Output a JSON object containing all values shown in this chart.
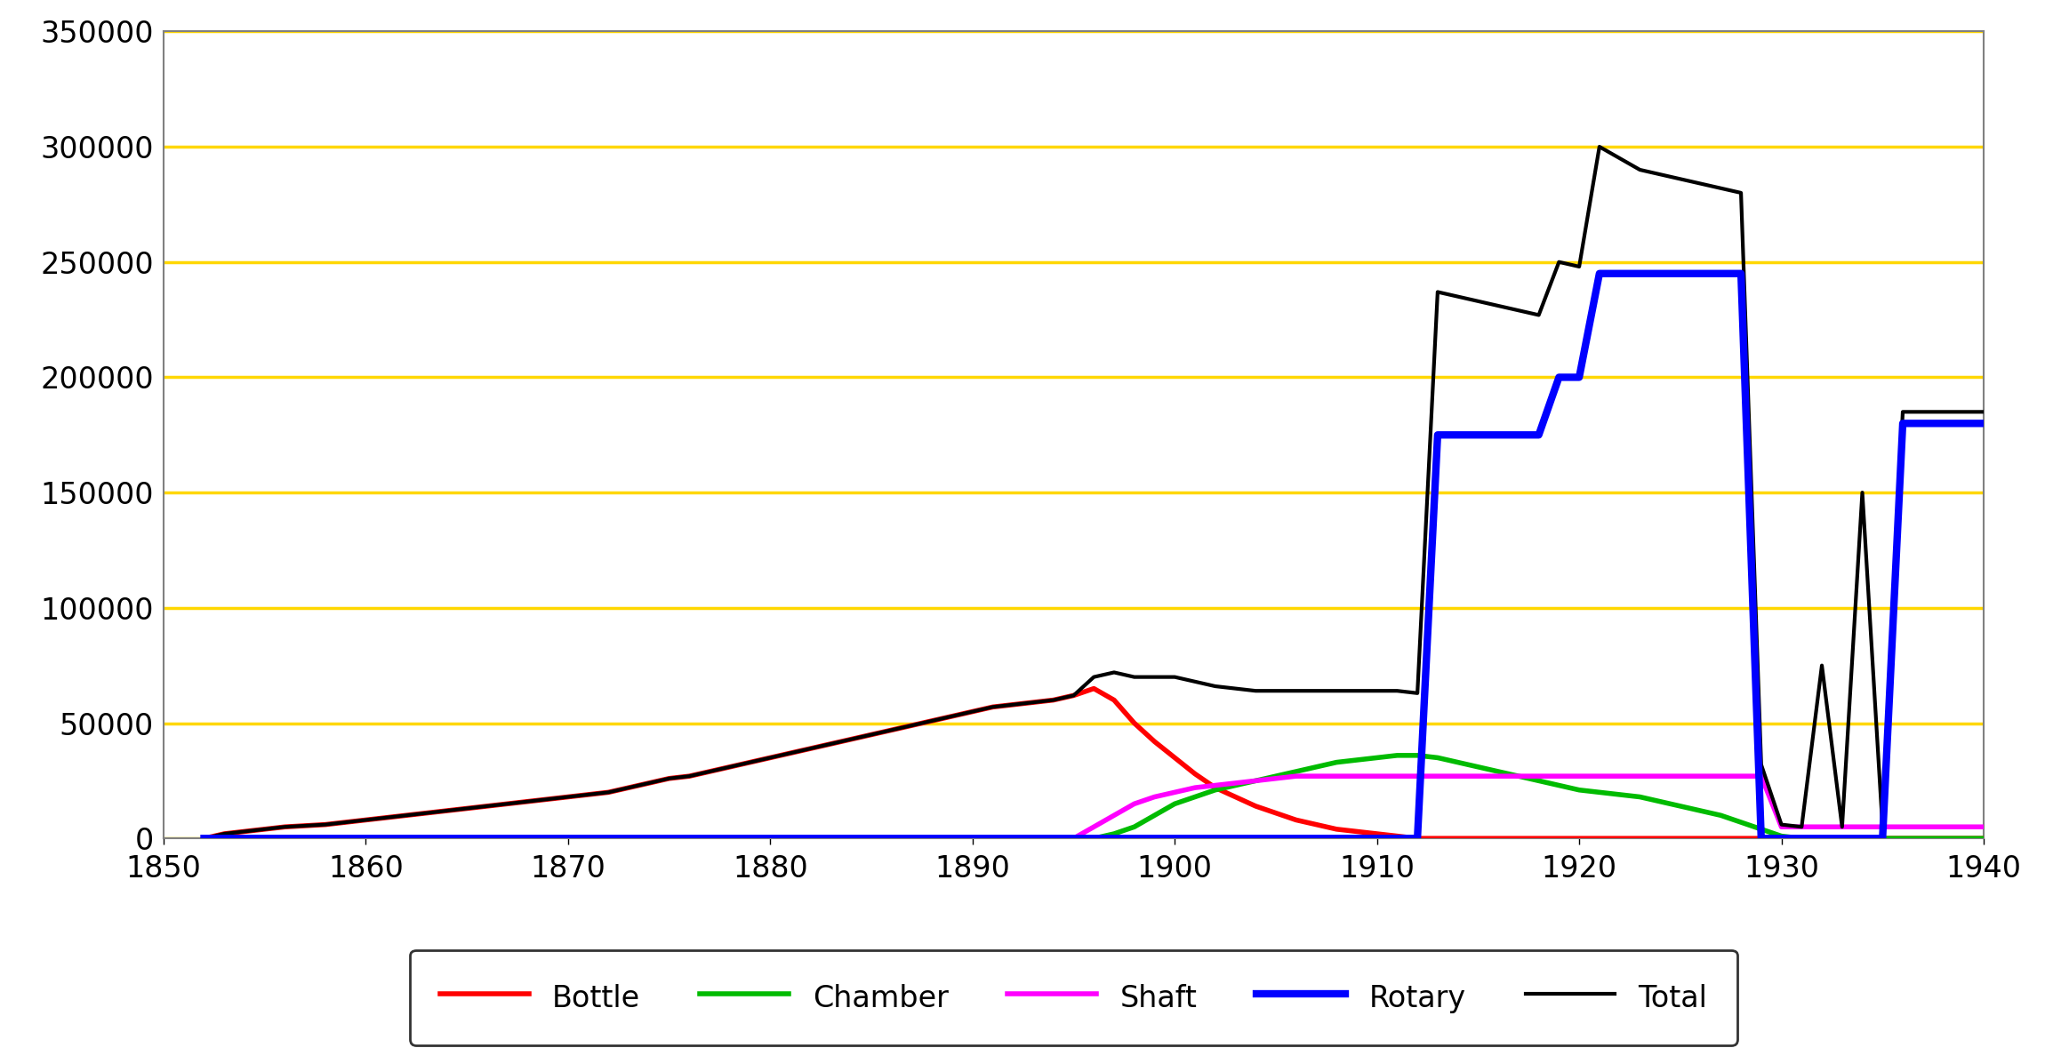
{
  "xlim": [
    1850,
    1940
  ],
  "ylim": [
    0,
    350000
  ],
  "yticks": [
    0,
    50000,
    100000,
    150000,
    200000,
    250000,
    300000,
    350000
  ],
  "xticks": [
    1850,
    1860,
    1870,
    1880,
    1890,
    1900,
    1910,
    1920,
    1930,
    1940
  ],
  "grid_color": "#FFD700",
  "background_color": "#ffffff",
  "series": {
    "Bottle": {
      "color": "#FF0000",
      "linewidth": 4,
      "data": [
        [
          1852,
          0
        ],
        [
          1853,
          2000
        ],
        [
          1854,
          3000
        ],
        [
          1855,
          4000
        ],
        [
          1856,
          5000
        ],
        [
          1857,
          5500
        ],
        [
          1858,
          6000
        ],
        [
          1859,
          7000
        ],
        [
          1860,
          8000
        ],
        [
          1861,
          9000
        ],
        [
          1862,
          10000
        ],
        [
          1863,
          11000
        ],
        [
          1864,
          12000
        ],
        [
          1865,
          13000
        ],
        [
          1866,
          14000
        ],
        [
          1867,
          15000
        ],
        [
          1868,
          16000
        ],
        [
          1869,
          17000
        ],
        [
          1870,
          18000
        ],
        [
          1871,
          19000
        ],
        [
          1872,
          20000
        ],
        [
          1873,
          22000
        ],
        [
          1874,
          24000
        ],
        [
          1875,
          26000
        ],
        [
          1876,
          27000
        ],
        [
          1877,
          29000
        ],
        [
          1878,
          31000
        ],
        [
          1879,
          33000
        ],
        [
          1880,
          35000
        ],
        [
          1881,
          37000
        ],
        [
          1882,
          39000
        ],
        [
          1883,
          41000
        ],
        [
          1884,
          43000
        ],
        [
          1885,
          45000
        ],
        [
          1886,
          47000
        ],
        [
          1887,
          49000
        ],
        [
          1888,
          51000
        ],
        [
          1889,
          53000
        ],
        [
          1890,
          55000
        ],
        [
          1891,
          57000
        ],
        [
          1892,
          58000
        ],
        [
          1893,
          59000
        ],
        [
          1894,
          60000
        ],
        [
          1895,
          62000
        ],
        [
          1896,
          65000
        ],
        [
          1897,
          60000
        ],
        [
          1898,
          50000
        ],
        [
          1899,
          42000
        ],
        [
          1900,
          35000
        ],
        [
          1901,
          28000
        ],
        [
          1902,
          22000
        ],
        [
          1903,
          18000
        ],
        [
          1904,
          14000
        ],
        [
          1905,
          11000
        ],
        [
          1906,
          8000
        ],
        [
          1907,
          6000
        ],
        [
          1908,
          4000
        ],
        [
          1909,
          3000
        ],
        [
          1910,
          2000
        ],
        [
          1911,
          1000
        ],
        [
          1912,
          0
        ],
        [
          1940,
          0
        ]
      ]
    },
    "Chamber": {
      "color": "#00BB00",
      "linewidth": 4,
      "data": [
        [
          1852,
          0
        ],
        [
          1896,
          0
        ],
        [
          1897,
          2000
        ],
        [
          1898,
          5000
        ],
        [
          1899,
          10000
        ],
        [
          1900,
          15000
        ],
        [
          1901,
          18000
        ],
        [
          1902,
          21000
        ],
        [
          1903,
          23000
        ],
        [
          1904,
          25000
        ],
        [
          1905,
          27000
        ],
        [
          1906,
          29000
        ],
        [
          1907,
          31000
        ],
        [
          1908,
          33000
        ],
        [
          1909,
          34000
        ],
        [
          1910,
          35000
        ],
        [
          1911,
          36000
        ],
        [
          1912,
          36000
        ],
        [
          1913,
          35000
        ],
        [
          1914,
          33000
        ],
        [
          1915,
          31000
        ],
        [
          1916,
          29000
        ],
        [
          1917,
          27000
        ],
        [
          1918,
          25000
        ],
        [
          1919,
          23000
        ],
        [
          1920,
          21000
        ],
        [
          1921,
          20000
        ],
        [
          1922,
          19000
        ],
        [
          1923,
          18000
        ],
        [
          1924,
          16000
        ],
        [
          1925,
          14000
        ],
        [
          1926,
          12000
        ],
        [
          1927,
          10000
        ],
        [
          1928,
          7000
        ],
        [
          1929,
          4000
        ],
        [
          1930,
          1000
        ],
        [
          1931,
          0
        ],
        [
          1940,
          0
        ]
      ]
    },
    "Shaft": {
      "color": "#FF00FF",
      "linewidth": 4,
      "data": [
        [
          1852,
          0
        ],
        [
          1895,
          0
        ],
        [
          1896,
          5000
        ],
        [
          1897,
          10000
        ],
        [
          1898,
          15000
        ],
        [
          1899,
          18000
        ],
        [
          1900,
          20000
        ],
        [
          1901,
          22000
        ],
        [
          1902,
          23000
        ],
        [
          1903,
          24000
        ],
        [
          1904,
          25000
        ],
        [
          1905,
          26000
        ],
        [
          1906,
          27000
        ],
        [
          1907,
          27000
        ],
        [
          1908,
          27000
        ],
        [
          1909,
          27000
        ],
        [
          1910,
          27000
        ],
        [
          1911,
          27000
        ],
        [
          1912,
          27000
        ],
        [
          1913,
          27000
        ],
        [
          1914,
          27000
        ],
        [
          1915,
          27000
        ],
        [
          1916,
          27000
        ],
        [
          1917,
          27000
        ],
        [
          1918,
          27000
        ],
        [
          1919,
          27000
        ],
        [
          1920,
          27000
        ],
        [
          1921,
          27000
        ],
        [
          1922,
          27000
        ],
        [
          1923,
          27000
        ],
        [
          1924,
          27000
        ],
        [
          1925,
          27000
        ],
        [
          1926,
          27000
        ],
        [
          1927,
          27000
        ],
        [
          1928,
          27000
        ],
        [
          1929,
          27000
        ],
        [
          1930,
          5000
        ],
        [
          1931,
          5000
        ],
        [
          1932,
          5000
        ],
        [
          1933,
          5000
        ],
        [
          1934,
          5000
        ],
        [
          1935,
          5000
        ],
        [
          1936,
          5000
        ],
        [
          1937,
          5000
        ],
        [
          1938,
          5000
        ],
        [
          1939,
          5000
        ],
        [
          1940,
          5000
        ]
      ]
    },
    "Rotary": {
      "color": "#0000FF",
      "linewidth": 6,
      "data": [
        [
          1852,
          0
        ],
        [
          1912,
          0
        ],
        [
          1913,
          175000
        ],
        [
          1914,
          175000
        ],
        [
          1915,
          175000
        ],
        [
          1916,
          175000
        ],
        [
          1917,
          175000
        ],
        [
          1918,
          175000
        ],
        [
          1919,
          200000
        ],
        [
          1920,
          200000
        ],
        [
          1921,
          245000
        ],
        [
          1922,
          245000
        ],
        [
          1923,
          245000
        ],
        [
          1924,
          245000
        ],
        [
          1925,
          245000
        ],
        [
          1926,
          245000
        ],
        [
          1927,
          245000
        ],
        [
          1928,
          245000
        ],
        [
          1929,
          0
        ],
        [
          1930,
          0
        ],
        [
          1931,
          0
        ],
        [
          1932,
          0
        ],
        [
          1933,
          0
        ],
        [
          1934,
          0
        ],
        [
          1935,
          0
        ],
        [
          1936,
          180000
        ],
        [
          1937,
          180000
        ],
        [
          1938,
          180000
        ],
        [
          1939,
          180000
        ],
        [
          1940,
          180000
        ]
      ]
    },
    "Total": {
      "color": "#000000",
      "linewidth": 3,
      "data": [
        [
          1852,
          0
        ],
        [
          1853,
          2000
        ],
        [
          1854,
          3000
        ],
        [
          1855,
          4000
        ],
        [
          1856,
          5000
        ],
        [
          1857,
          5500
        ],
        [
          1858,
          6000
        ],
        [
          1859,
          7000
        ],
        [
          1860,
          8000
        ],
        [
          1861,
          9000
        ],
        [
          1862,
          10000
        ],
        [
          1863,
          11000
        ],
        [
          1864,
          12000
        ],
        [
          1865,
          13000
        ],
        [
          1866,
          14000
        ],
        [
          1867,
          15000
        ],
        [
          1868,
          16000
        ],
        [
          1869,
          17000
        ],
        [
          1870,
          18000
        ],
        [
          1871,
          19000
        ],
        [
          1872,
          20000
        ],
        [
          1873,
          22000
        ],
        [
          1874,
          24000
        ],
        [
          1875,
          26000
        ],
        [
          1876,
          27000
        ],
        [
          1877,
          29000
        ],
        [
          1878,
          31000
        ],
        [
          1879,
          33000
        ],
        [
          1880,
          35000
        ],
        [
          1881,
          37000
        ],
        [
          1882,
          39000
        ],
        [
          1883,
          41000
        ],
        [
          1884,
          43000
        ],
        [
          1885,
          45000
        ],
        [
          1886,
          47000
        ],
        [
          1887,
          49000
        ],
        [
          1888,
          51000
        ],
        [
          1889,
          53000
        ],
        [
          1890,
          55000
        ],
        [
          1891,
          57000
        ],
        [
          1892,
          58000
        ],
        [
          1893,
          59000
        ],
        [
          1894,
          60000
        ],
        [
          1895,
          62000
        ],
        [
          1896,
          70000
        ],
        [
          1897,
          72000
        ],
        [
          1898,
          70000
        ],
        [
          1899,
          70000
        ],
        [
          1900,
          70000
        ],
        [
          1901,
          68000
        ],
        [
          1902,
          66000
        ],
        [
          1903,
          65000
        ],
        [
          1904,
          64000
        ],
        [
          1905,
          64000
        ],
        [
          1906,
          64000
        ],
        [
          1907,
          64000
        ],
        [
          1908,
          64000
        ],
        [
          1909,
          64000
        ],
        [
          1910,
          64000
        ],
        [
          1911,
          64000
        ],
        [
          1912,
          63000
        ],
        [
          1913,
          237000
        ],
        [
          1914,
          235000
        ],
        [
          1915,
          233000
        ],
        [
          1916,
          231000
        ],
        [
          1917,
          229000
        ],
        [
          1918,
          227000
        ],
        [
          1919,
          250000
        ],
        [
          1920,
          248000
        ],
        [
          1921,
          300000
        ],
        [
          1922,
          295000
        ],
        [
          1923,
          290000
        ],
        [
          1924,
          288000
        ],
        [
          1925,
          286000
        ],
        [
          1926,
          284000
        ],
        [
          1927,
          282000
        ],
        [
          1928,
          280000
        ],
        [
          1929,
          32000
        ],
        [
          1930,
          6000
        ],
        [
          1931,
          5000
        ],
        [
          1932,
          75000
        ],
        [
          1933,
          5000
        ],
        [
          1934,
          150000
        ],
        [
          1935,
          5000
        ],
        [
          1936,
          185000
        ],
        [
          1937,
          185000
        ],
        [
          1938,
          185000
        ],
        [
          1939,
          185000
        ],
        [
          1940,
          185000
        ]
      ]
    }
  },
  "legend_entries": [
    "Bottle",
    "Chamber",
    "Shaft",
    "Rotary",
    "Total"
  ],
  "legend_colors": [
    "#FF0000",
    "#00BB00",
    "#FF00FF",
    "#0000FF",
    "#000000"
  ],
  "legend_linewidths": [
    4,
    4,
    4,
    6,
    3
  ]
}
